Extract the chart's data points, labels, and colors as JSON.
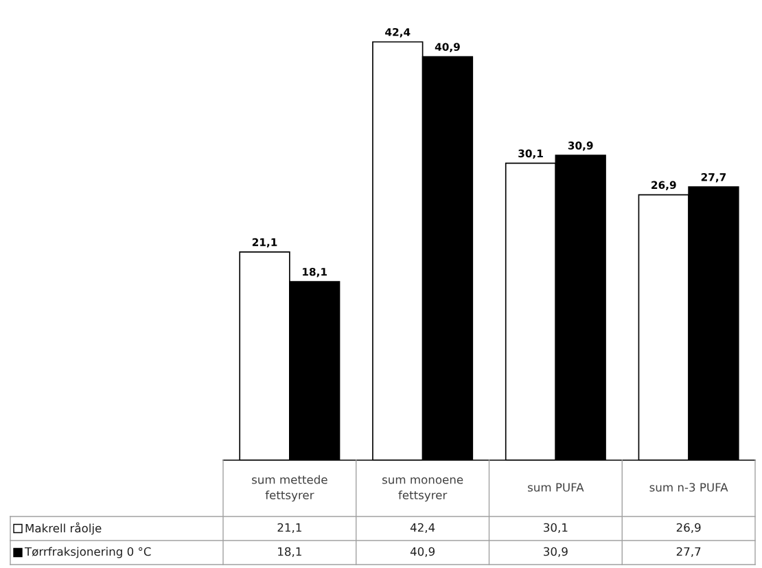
{
  "chart_data": {
    "type": "bar",
    "categories": [
      "sum mettede\nfettsyrer",
      "sum monoene\nfettsyrer",
      "sum PUFA",
      "sum n-3 PUFA"
    ],
    "series": [
      {
        "name": "Makrell råolje",
        "color": "#ffffff",
        "values": [
          21.1,
          42.4,
          30.1,
          26.9
        ],
        "value_labels": [
          "21,1",
          "42,4",
          "30,1",
          "26,9"
        ]
      },
      {
        "name": "Tørrfraksjonering 0 °C",
        "color": "#000000",
        "values": [
          18.1,
          40.9,
          30.9,
          27.7
        ],
        "value_labels": [
          "18,1",
          "40,9",
          "30,9",
          "27,7"
        ]
      }
    ],
    "legend": "bottom"
  }
}
